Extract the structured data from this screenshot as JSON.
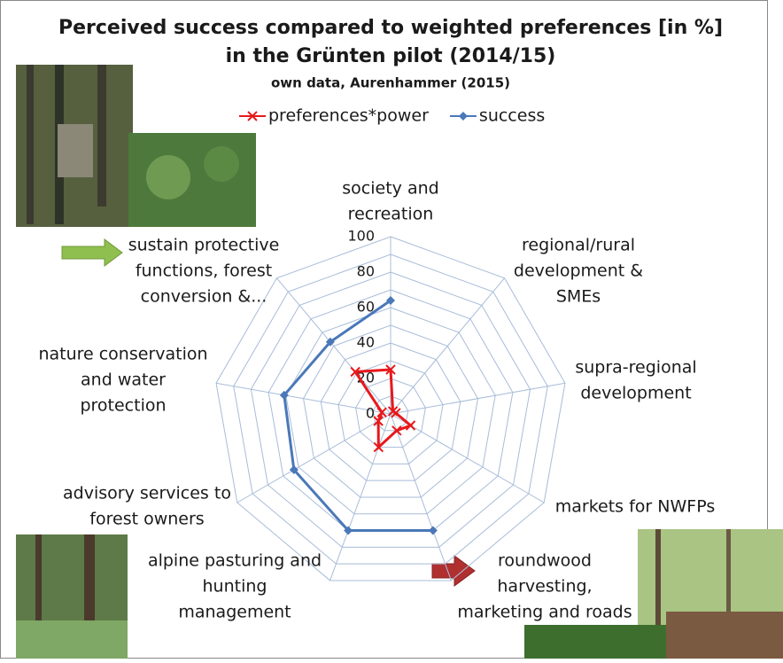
{
  "chart_data": {
    "type": "radar",
    "title": [
      "Perceived success compared to weighted preferences [in %]",
      "in the Grünten pilot (2014/15)"
    ],
    "subtitle": "own data, Aurenhammer (2015)",
    "categories": [
      [
        "society and",
        "recreation"
      ],
      [
        "regional/rural",
        "development &",
        "SMEs"
      ],
      [
        "supra-regional",
        "development"
      ],
      [
        "markets for NWFPs"
      ],
      [
        "roundwood",
        "harvesting,",
        "marketing and roads"
      ],
      [
        "alpine pasturing and",
        "hunting",
        "management"
      ],
      [
        "advisory services to",
        "forest owners"
      ],
      [
        "nature conservation",
        "and water",
        "protection"
      ],
      [
        "sustain protective",
        "functions, forest",
        "conversion  &..."
      ]
    ],
    "series": [
      {
        "name": "preferences*power",
        "color": "#e8181c",
        "marker": "x",
        "values": [
          25,
          2,
          3,
          13,
          10,
          20,
          8,
          5,
          31
        ]
      },
      {
        "name": "success",
        "color": "#4a78b8",
        "marker": "diamond",
        "values": [
          64,
          null,
          null,
          null,
          70,
          70,
          63,
          61,
          53
        ]
      }
    ],
    "ylim": [
      0,
      100
    ],
    "yticks": [
      0,
      20,
      40,
      60,
      80,
      100
    ],
    "minor_yticks": [
      10,
      30,
      50,
      70,
      90
    ],
    "grid": true,
    "legend": "top"
  }
}
